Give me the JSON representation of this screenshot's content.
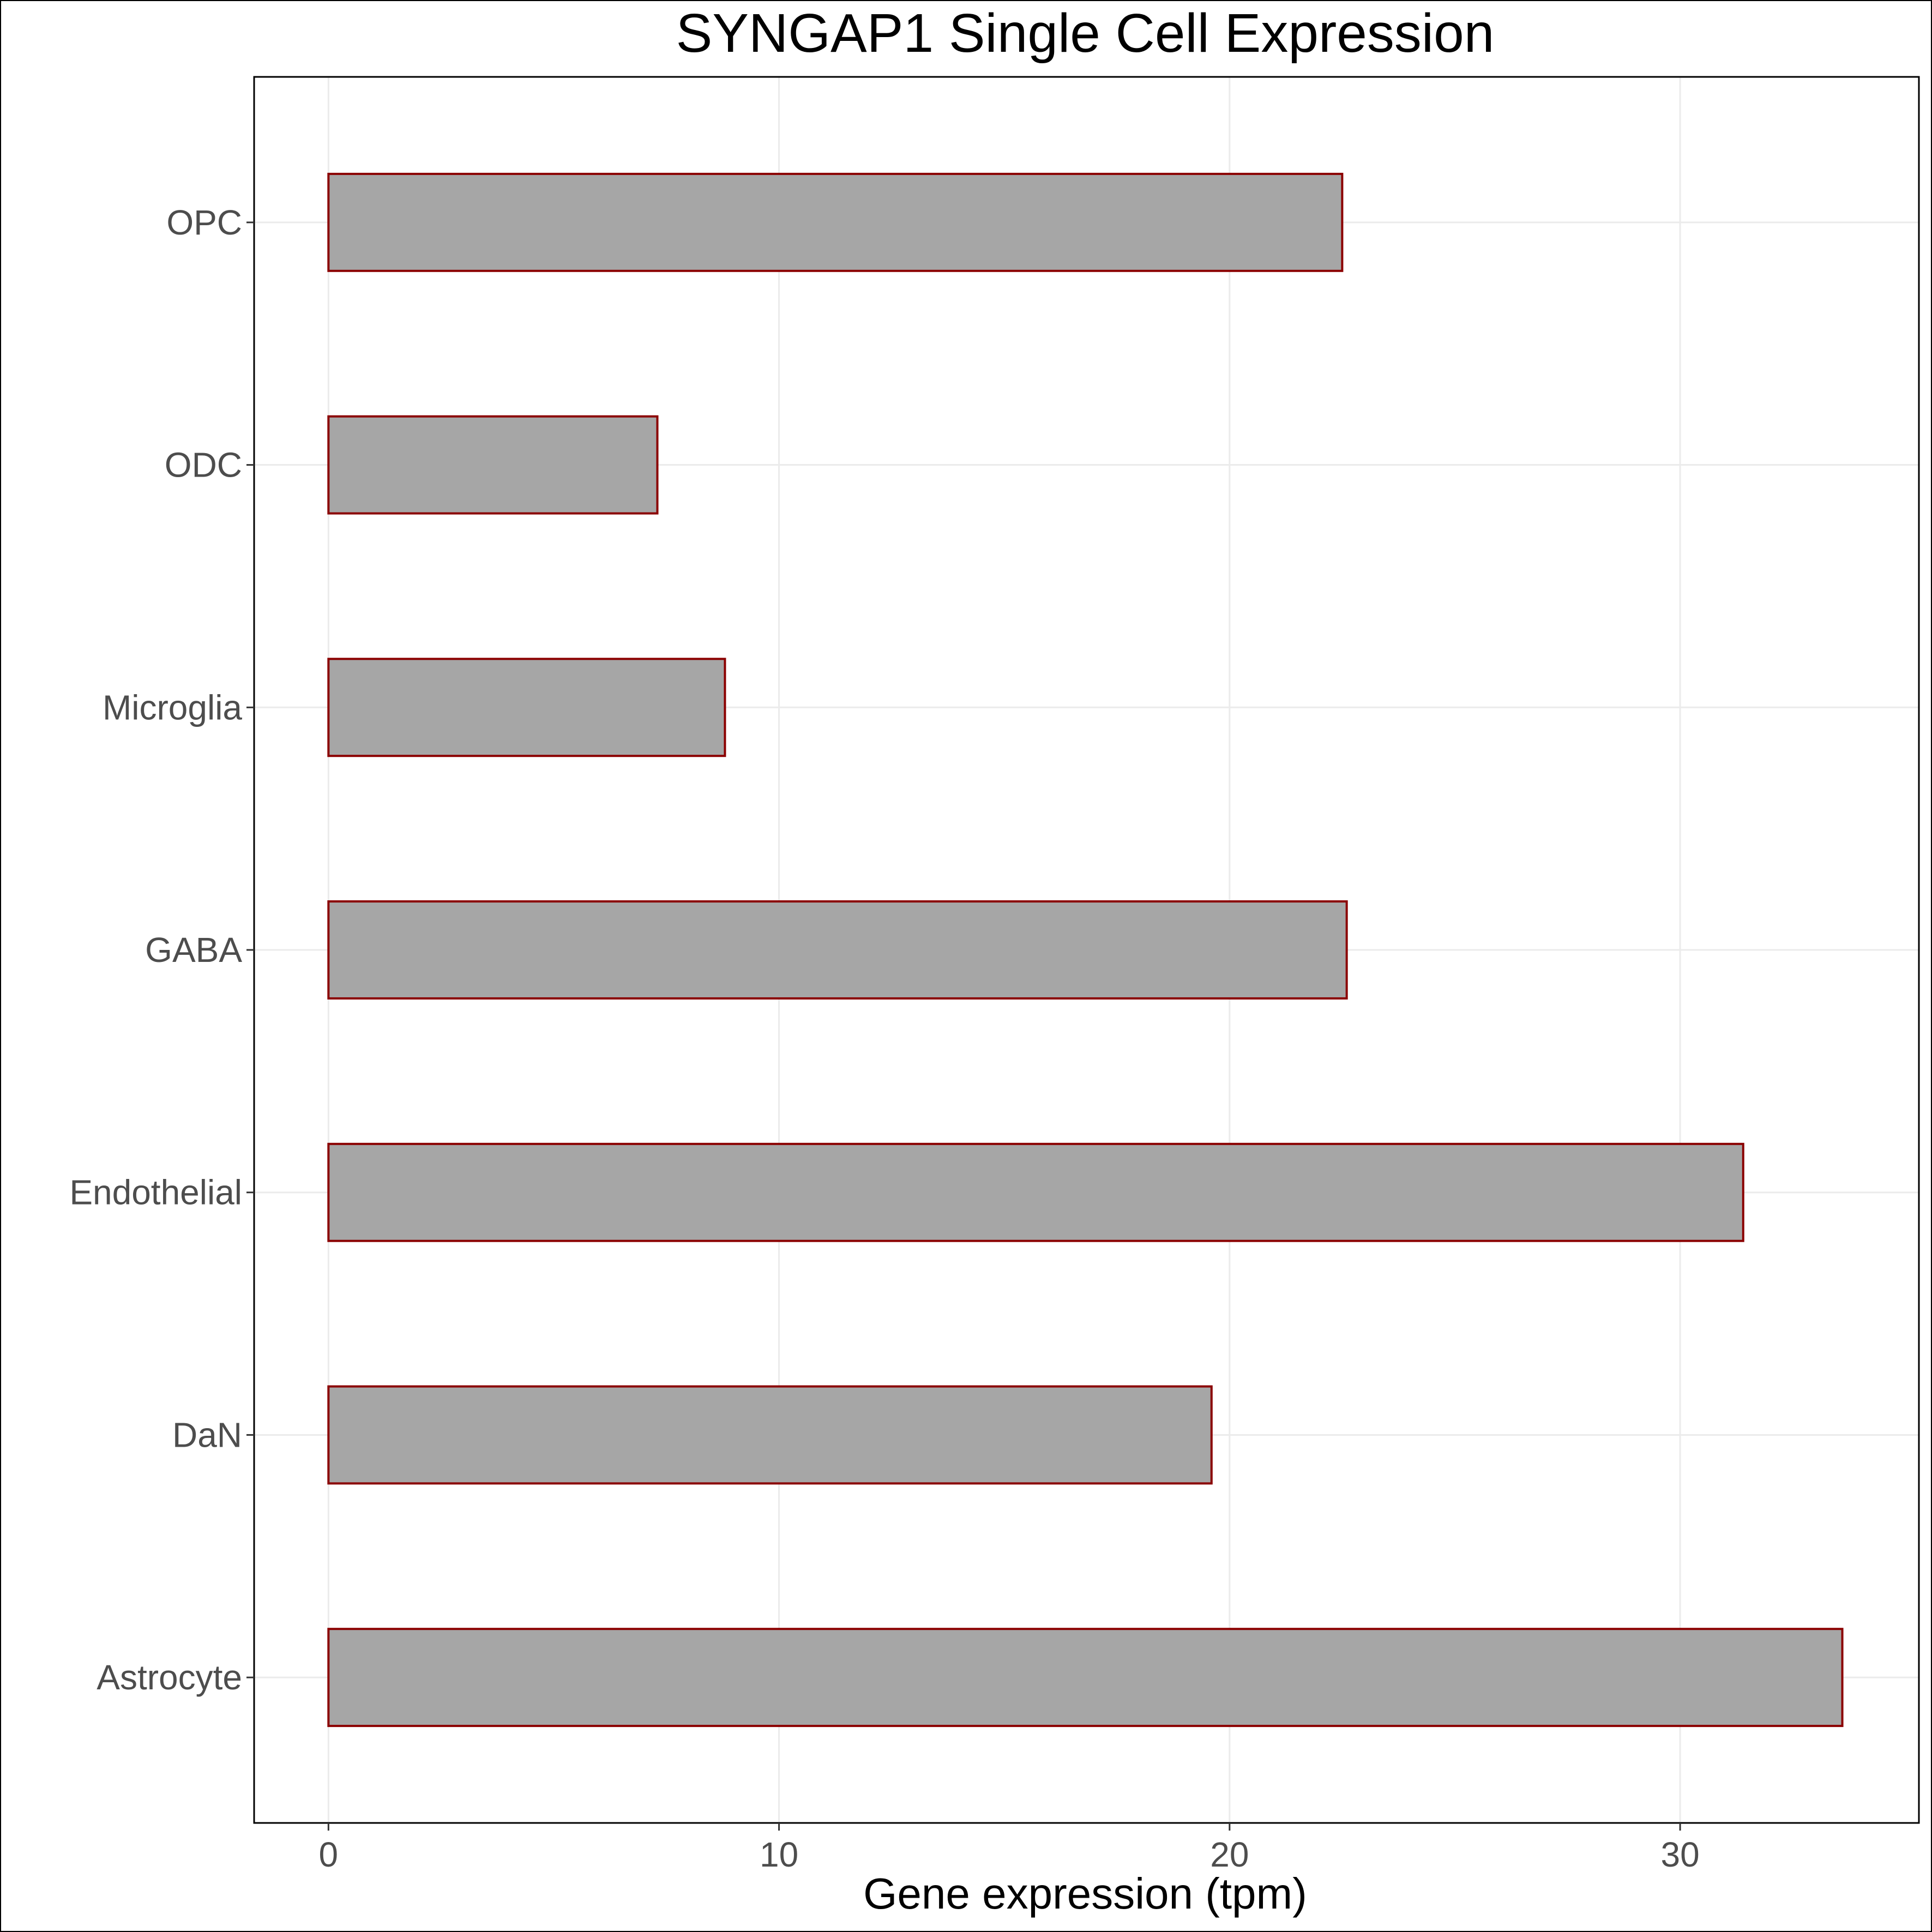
{
  "chart_data": {
    "type": "bar",
    "orientation": "horizontal",
    "title": "SYNGAP1 Single Cell Expression",
    "xlabel": "Gene expression (tpm)",
    "ylabel": "",
    "categories": [
      "Astrocyte",
      "DaN",
      "Endothelial",
      "GABA",
      "Microglia",
      "ODC",
      "OPC"
    ],
    "values": [
      33.6,
      19.6,
      31.4,
      22.6,
      8.8,
      7.3,
      22.5
    ],
    "xlim": [
      -1.65,
      35.3
    ],
    "xticks": [
      0,
      10,
      20,
      30
    ],
    "grid": true,
    "legend": "none",
    "colors": {
      "bar_fill": "#a6a6a6",
      "bar_stroke": "#8b0000",
      "grid": "#ebebeb",
      "axis": "#000000"
    }
  }
}
